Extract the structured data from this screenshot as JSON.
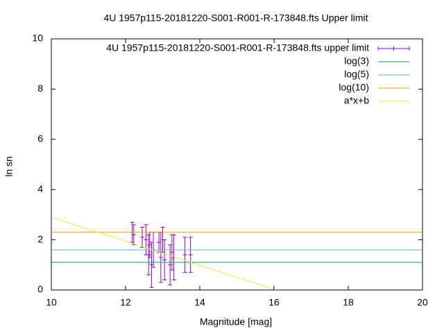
{
  "chart_data": {
    "type": "line",
    "title": "4U 1957p115-20181220-S001-R001-R-173848.fts Upper limit",
    "x_label": "Magnitude [mag]",
    "y_label": "ln sn",
    "xlim": [
      10,
      20
    ],
    "xticks": [
      10,
      12,
      14,
      16,
      18,
      20
    ],
    "ylim": [
      0,
      10
    ],
    "yticks": [
      0,
      2,
      4,
      6,
      8,
      10
    ],
    "legend": "top-right",
    "series": [
      {
        "name": "4U 1957p115-20181220-S001-R001-R-173848.fts upper limit",
        "type": "errorbar",
        "color": "#9400d3",
        "x": [
          12.18,
          12.22,
          12.45,
          12.55,
          12.62,
          12.65,
          12.7,
          12.75,
          12.9,
          12.95,
          13.0,
          13.05,
          13.2,
          13.25,
          13.3,
          13.6,
          13.75
        ],
        "values": [
          2.3,
          2.2,
          2.1,
          2.0,
          1.4,
          1.8,
          1.0,
          1.6,
          1.9,
          1.3,
          2.0,
          1.2,
          1.0,
          1.5,
          1.3,
          1.4,
          1.4
        ],
        "errors": [
          0.4,
          0.4,
          0.4,
          0.6,
          0.8,
          0.5,
          0.9,
          0.7,
          0.4,
          1.0,
          0.5,
          0.8,
          0.8,
          0.7,
          0.9,
          0.7,
          0.7
        ]
      },
      {
        "name": "log(3)",
        "type": "line",
        "color": "#009e73",
        "x": [
          10,
          20
        ],
        "values": [
          1.1,
          1.1
        ]
      },
      {
        "name": "log(5)",
        "type": "line",
        "color": "#56b4e9",
        "x": [
          10,
          20
        ],
        "values": [
          1.6,
          1.6
        ]
      },
      {
        "name": "log(10)",
        "type": "line",
        "color": "#e69f00",
        "x": [
          10,
          20
        ],
        "values": [
          2.3,
          2.3
        ]
      },
      {
        "name": "a*x+b",
        "type": "line",
        "color": "#f0e442",
        "x": [
          10,
          16.06
        ],
        "values": [
          2.9,
          0
        ]
      }
    ]
  }
}
